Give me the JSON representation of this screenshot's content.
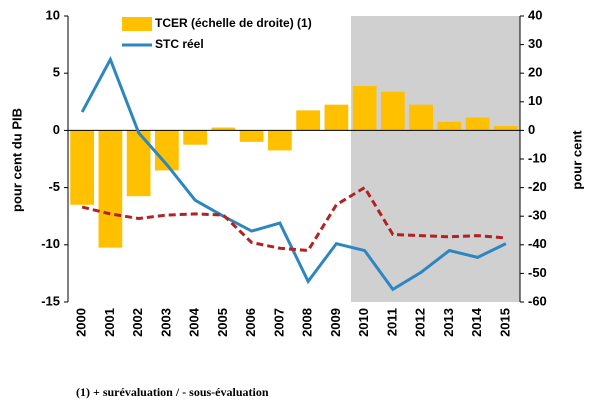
{
  "chart_data": {
    "type": "bar-line",
    "categories": [
      "2000",
      "2001",
      "2002",
      "2003",
      "2004",
      "2005",
      "2006",
      "2007",
      "2008",
      "2009",
      "2010",
      "2011",
      "2012",
      "2013",
      "2014",
      "2015"
    ],
    "series": [
      {
        "name": "TCER (échelle de droite) (1)",
        "type": "bar",
        "axis": "y2",
        "color": "#ffc000",
        "values": [
          -26,
          -41,
          -23,
          -14,
          -5,
          1,
          -4,
          -7,
          7,
          9,
          15.5,
          13.5,
          9,
          3,
          4.5,
          1.5
        ]
      },
      {
        "name": "STC réel",
        "type": "line",
        "color": "#2e86c1",
        "values": [
          1.6,
          6.2,
          -0.2,
          -3,
          -6.1,
          -7.5,
          -8.8,
          -8.1,
          -13.2,
          -9.9,
          -10.5,
          -13.9,
          -12.4,
          -10.5,
          -11.1,
          -9.9
        ]
      },
      {
        "type": "line",
        "dashed": true,
        "color": "#b22222",
        "values": [
          -6.7,
          -7.3,
          -7.7,
          -7.4,
          -7.3,
          -7.4,
          -9.8,
          -10.3,
          -10.5,
          -6.5,
          -5.0,
          -9.1,
          -9.2,
          -9.3,
          -9.2,
          -9.4
        ]
      }
    ],
    "ylabel": "pour cent du PIB",
    "y2label": "pour cent",
    "ylim": [
      -15,
      10
    ],
    "yticks": [
      10,
      5,
      0,
      -5,
      -10,
      -15
    ],
    "y2lim": [
      -60,
      40
    ],
    "y2ticks": [
      40,
      30,
      20,
      10,
      0,
      -10,
      -20,
      -30,
      -40,
      -50,
      -60
    ],
    "footnote": "(1) + surévaluation / - sous-évaluation"
  }
}
